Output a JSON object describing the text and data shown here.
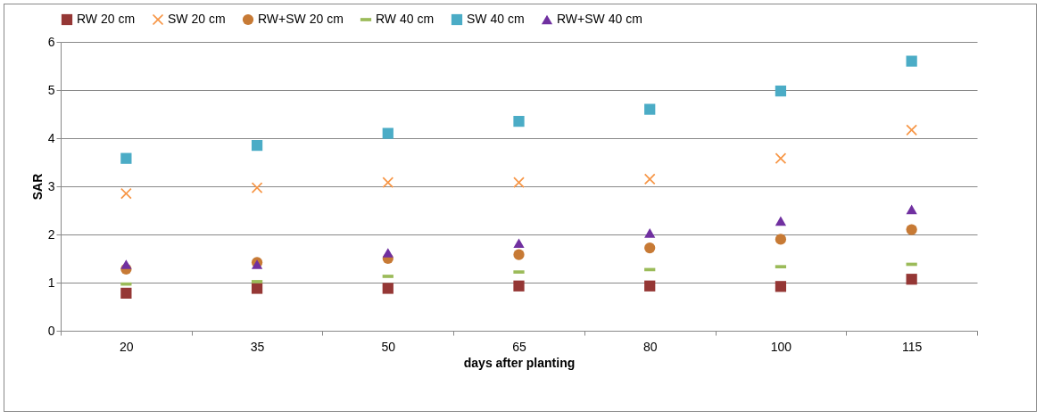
{
  "chart_data": {
    "type": "scatter",
    "xlabel": "days after planting",
    "ylabel": "SAR",
    "categories": [
      "20",
      "35",
      "50",
      "65",
      "80",
      "100",
      "115"
    ],
    "ylim": [
      0,
      6
    ],
    "yticks": [
      0,
      1,
      2,
      3,
      4,
      5,
      6
    ],
    "grid": "y",
    "legend": "top",
    "series": [
      {
        "name": "RW 20 cm",
        "color": "#953735",
        "marker": "square",
        "values": [
          0.78,
          0.88,
          0.88,
          0.93,
          0.93,
          0.92,
          1.07
        ]
      },
      {
        "name": "SW 20 cm",
        "color": "#f79646",
        "marker": "cross",
        "values": [
          2.85,
          2.97,
          3.08,
          3.08,
          3.15,
          3.58,
          4.17
        ]
      },
      {
        "name": "RW+SW 20 cm",
        "color": "#c77a35",
        "marker": "circle",
        "values": [
          1.28,
          1.42,
          1.5,
          1.58,
          1.72,
          1.9,
          2.1
        ]
      },
      {
        "name": "RW 40 cm",
        "color": "#9bbb59",
        "values": [
          0.97,
          1.02,
          1.13,
          1.22,
          1.27,
          1.33,
          1.38
        ]
      },
      {
        "name": "SW 40 cm",
        "color": "#4bacc6",
        "marker": "square",
        "values": [
          3.58,
          3.85,
          4.1,
          4.35,
          4.6,
          4.98,
          5.6
        ]
      },
      {
        "name": "RW+SW 40 cm",
        "color": "#7030a0",
        "marker": "triangle",
        "values": [
          1.38,
          1.38,
          1.62,
          1.82,
          2.03,
          2.28,
          2.52
        ]
      }
    ]
  }
}
